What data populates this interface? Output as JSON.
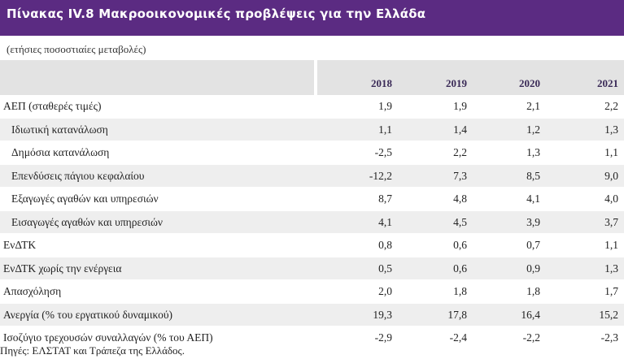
{
  "title": "Πίνακας IV.8 Μακροοικονομικές προβλέψεις για την Ελλάδα",
  "subtitle": "(ετήσιες ποσοστιαίες μεταβολές)",
  "years": [
    "2018",
    "2019",
    "2020",
    "2021"
  ],
  "rows": [
    {
      "label": "ΑΕΠ (σταθερές τιμές)",
      "values": [
        "1,9",
        "1,9",
        "2,1",
        "2,2"
      ]
    },
    {
      "label": "Ιδιωτική κατανάλωση",
      "values": [
        "1,1",
        "1,4",
        "1,2",
        "1,3"
      ]
    },
    {
      "label": "Δημόσια κατανάλωση",
      "values": [
        "-2,5",
        "2,2",
        "1,3",
        "1,1"
      ]
    },
    {
      "label": "Επενδύσεις πάγιου κεφαλαίου",
      "values": [
        "-12,2",
        "7,3",
        "8,5",
        "9,0"
      ]
    },
    {
      "label": "Εξαγωγές αγαθών και υπηρεσιών",
      "values": [
        "8,7",
        "4,8",
        "4,1",
        "4,0"
      ]
    },
    {
      "label": "Εισαγωγές αγαθών και υπηρεσιών",
      "values": [
        "4,1",
        "4,5",
        "3,9",
        "3,7"
      ]
    },
    {
      "label": "ΕνΔΤΚ",
      "values": [
        "0,8",
        "0,6",
        "0,7",
        "1,1"
      ]
    },
    {
      "label": "ΕνΔΤΚ χωρίς την ενέργεια",
      "values": [
        "0,5",
        "0,6",
        "0,9",
        "1,3"
      ]
    },
    {
      "label": "Απασχόληση",
      "values": [
        "2,0",
        "1,8",
        "1,8",
        "1,7"
      ]
    },
    {
      "label": "Ανεργία (% του εργατικού δυναμικού)",
      "values": [
        "19,3",
        "17,8",
        "16,4",
        "15,2"
      ]
    },
    {
      "label": "Ισοζύγιο τρεχουσών συναλλαγών (% του ΑΕΠ)",
      "values": [
        "-2,9",
        "-2,4",
        "-2,2",
        "-2,3"
      ]
    }
  ],
  "footer": "Πηγές: ΕΛΣΤΑΤ και Τράπεζα της Ελλάδος.",
  "colors": {
    "title_bar": "#5b2b82",
    "header_band": "#e3e3e3",
    "row_shade": "#eeeeee"
  }
}
